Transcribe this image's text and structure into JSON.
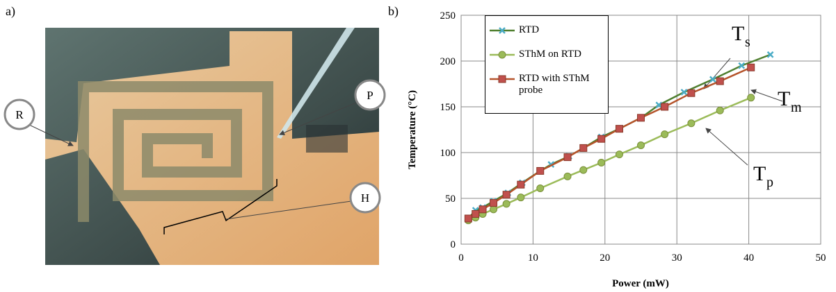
{
  "panel_labels": [
    "a)",
    "b)"
  ],
  "photo_labels": [
    "R",
    "P",
    "H"
  ],
  "chart_data": {
    "type": "line",
    "xlabel": "Power (mW)",
    "ylabel": "Temperature (°C)",
    "xlim": [
      0,
      50
    ],
    "xticks": [
      0,
      10,
      20,
      30,
      40,
      50
    ],
    "ylim": [
      0,
      250
    ],
    "yticks": [
      0,
      50,
      100,
      150,
      200,
      250
    ],
    "grid": true,
    "legend": "upper left",
    "series": [
      {
        "name": "RTD",
        "color": "#4f7f2f",
        "marker": "x",
        "marker_color": "#4bacc6",
        "x": [
          1.0,
          2.0,
          3.0,
          4.5,
          6.5,
          8.5,
          11.0,
          12.5,
          15.0,
          17.0,
          19.5,
          22.0,
          25.0,
          27.5,
          31.0,
          35.0,
          39.0,
          43.0
        ],
        "values": [
          28,
          37,
          40,
          47,
          56,
          67,
          80,
          87,
          96,
          105,
          117,
          126,
          138,
          152,
          166,
          180,
          195,
          207
        ]
      },
      {
        "name": "SThM on RTD",
        "color": "#9bbb59",
        "marker": "circle",
        "marker_color": "#9bbb59",
        "x": [
          1.0,
          2.0,
          3.0,
          4.5,
          6.3,
          8.3,
          11.0,
          14.8,
          17.0,
          19.5,
          22.0,
          25.0,
          28.3,
          32.0,
          36.0,
          40.3
        ],
        "values": [
          26,
          29,
          33,
          38,
          44,
          51,
          61,
          74,
          81,
          89,
          98,
          108,
          120,
          132,
          146,
          160
        ]
      },
      {
        "name": "RTD with SThM probe",
        "color": "#b5532a",
        "marker": "square",
        "marker_color": "#c0504d",
        "x": [
          1.0,
          2.0,
          3.0,
          4.5,
          6.3,
          8.3,
          11.0,
          14.8,
          17.0,
          19.5,
          22.0,
          25.0,
          28.3,
          32.0,
          36.0,
          40.3
        ],
        "values": [
          28,
          33,
          38,
          45,
          54,
          65,
          80,
          95,
          105,
          115,
          126,
          138,
          150,
          165,
          178,
          193
        ]
      }
    ],
    "annotations": [
      {
        "text": "T",
        "subscript": "s"
      },
      {
        "text": "T",
        "subscript": "m"
      },
      {
        "text": "T",
        "subscript": "p"
      }
    ]
  }
}
